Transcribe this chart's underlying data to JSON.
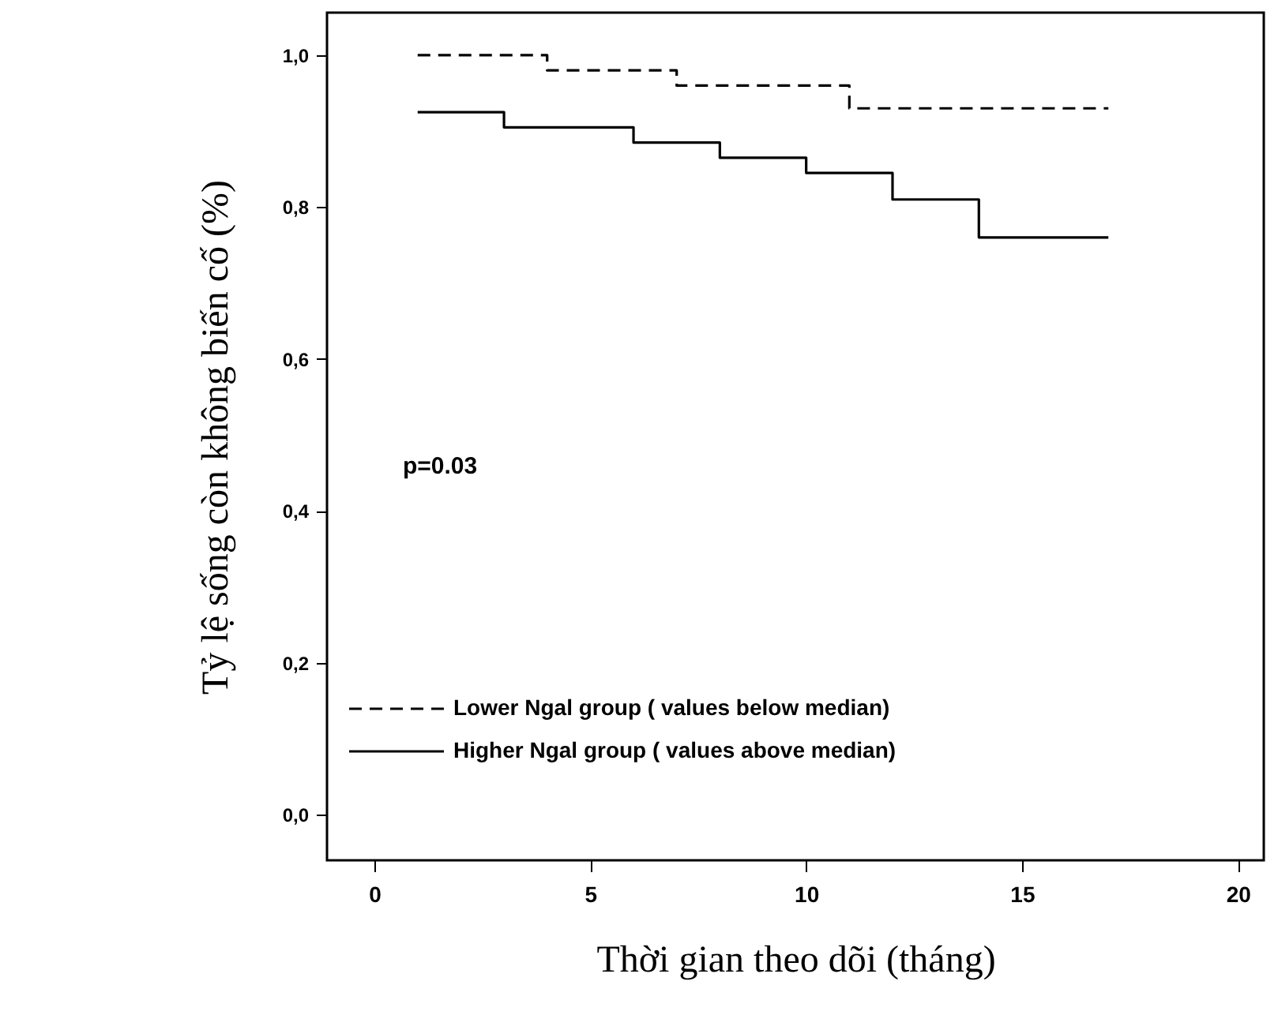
{
  "chart_data": {
    "type": "step",
    "xlabel": "Thời gian theo dõi (tháng)",
    "ylabel": "Tỷ lệ sống còn không biến cố (%)",
    "annotations": [
      "p=0.03"
    ],
    "xlim": [
      -1.1,
      20.6
    ],
    "xticks": [
      0,
      5,
      10,
      15,
      20
    ],
    "ylim": [
      -0.06,
      1.056
    ],
    "yticks": [
      {
        "value": 0,
        "label": "0,0"
      },
      {
        "value": 0.2,
        "label": "0,2"
      },
      {
        "value": 0.4,
        "label": "0,4"
      },
      {
        "value": 0.6,
        "label": "0,6"
      },
      {
        "value": 0.8,
        "label": "0,8"
      },
      {
        "value": 1,
        "label": "1,0"
      }
    ],
    "grid": false,
    "legend": "bottom left",
    "series": [
      {
        "name": "Lower Ngal group ( values below median)",
        "color": "#000000",
        "line_style": "dashed",
        "x": [
          1,
          4,
          7,
          11,
          17
        ],
        "values": [
          1.0,
          0.98,
          0.96,
          0.93,
          0.93
        ]
      },
      {
        "name": "Higher Ngal group ( values above median)",
        "color": "#000000",
        "line_style": "solid",
        "x": [
          1,
          3,
          6,
          8,
          10,
          12,
          14,
          17
        ],
        "values": [
          0.925,
          0.905,
          0.885,
          0.865,
          0.845,
          0.81,
          0.76,
          0.76
        ]
      }
    ]
  }
}
